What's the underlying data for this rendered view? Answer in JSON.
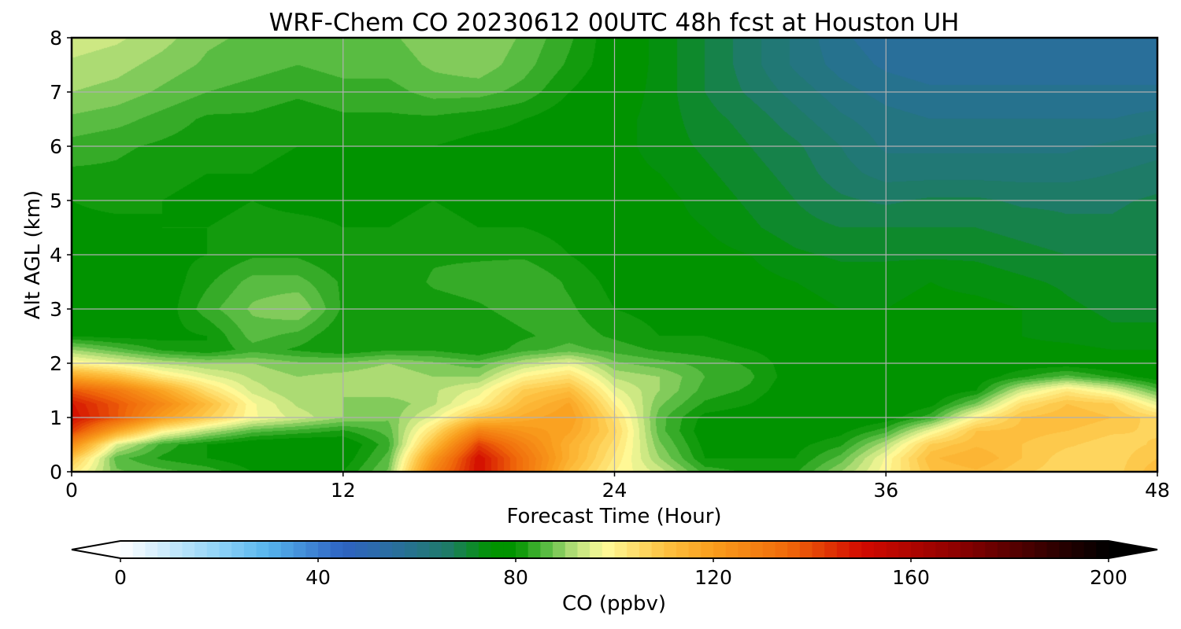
{
  "chart_data": {
    "type": "heatmap",
    "title": "WRF-Chem CO  20230612 00UTC 48h fcst at Houston UH",
    "xlabel": "Forecast Time (Hour)",
    "ylabel": "Alt AGL (km)",
    "xlim": [
      0,
      48
    ],
    "ylim": [
      0,
      8
    ],
    "xticks": [
      "0",
      "12",
      "24",
      "36",
      "48"
    ],
    "yticks": [
      "0",
      "1",
      "2",
      "3",
      "4",
      "5",
      "6",
      "7",
      "8"
    ],
    "grid": true,
    "colorbar": {
      "label": "CO  (ppbv)",
      "range": [
        0,
        200
      ],
      "ticks": [
        "0",
        "40",
        "80",
        "120",
        "160",
        "200"
      ],
      "extend": "both",
      "orientation": "horizontal",
      "placement": "bottom",
      "stops": [
        {
          "v": 0,
          "c": "#ffffff"
        },
        {
          "v": 20,
          "c": "#8fd3f8"
        },
        {
          "v": 30,
          "c": "#56b4ec"
        },
        {
          "v": 45,
          "c": "#2e63c2"
        },
        {
          "v": 55,
          "c": "#2a6ea0"
        },
        {
          "v": 66,
          "c": "#1f7a6a"
        },
        {
          "v": 75,
          "c": "#019300"
        },
        {
          "v": 80,
          "c": "#019300"
        },
        {
          "v": 86,
          "c": "#55ba40"
        },
        {
          "v": 92,
          "c": "#b8e07a"
        },
        {
          "v": 98,
          "c": "#fffb9a"
        },
        {
          "v": 110,
          "c": "#fdc343"
        },
        {
          "v": 120,
          "c": "#f99d1c"
        },
        {
          "v": 135,
          "c": "#f06a0a"
        },
        {
          "v": 150,
          "c": "#d20a00"
        },
        {
          "v": 170,
          "c": "#8a0000"
        },
        {
          "v": 190,
          "c": "#2a0000"
        },
        {
          "v": 200,
          "c": "#000000"
        }
      ]
    },
    "field": {
      "x_hours": [
        0,
        2,
        4,
        6,
        8,
        10,
        12,
        14,
        16,
        18,
        20,
        22,
        24,
        26,
        28,
        30,
        32,
        34,
        36,
        38,
        40,
        42,
        44,
        46,
        48
      ],
      "z_km": [
        0,
        0.25,
        0.5,
        0.75,
        1,
        1.25,
        1.5,
        1.75,
        2,
        2.25,
        2.5,
        3,
        3.5,
        4,
        4.5,
        5,
        5.5,
        6,
        6.5,
        7,
        7.5,
        8
      ],
      "values_ppbv": [
        [
          102,
          88,
          86,
          84,
          80,
          79,
          80,
          88,
          128,
          150,
          132,
          112,
          100,
          94,
          84,
          82,
          82,
          90,
          99,
          110,
          112,
          108,
          106,
          106,
          112
        ],
        [
          110,
          86,
          82,
          80,
          78,
          77,
          78,
          86,
          122,
          150,
          132,
          115,
          102,
          90,
          80,
          80,
          80,
          86,
          98,
          112,
          115,
          110,
          106,
          106,
          110
        ],
        [
          125,
          95,
          84,
          80,
          77,
          76,
          77,
          84,
          112,
          142,
          128,
          115,
          104,
          88,
          79,
          79,
          79,
          82,
          92,
          108,
          112,
          110,
          108,
          106,
          108
        ],
        [
          142,
          118,
          100,
          92,
          86,
          84,
          82,
          86,
          104,
          128,
          122,
          118,
          106,
          86,
          78,
          78,
          77,
          79,
          84,
          97,
          110,
          111,
          110,
          108,
          107
        ],
        [
          150,
          138,
          120,
          108,
          98,
          94,
          90,
          88,
          96,
          110,
          116,
          120,
          104,
          86,
          79,
          78,
          76,
          76,
          78,
          84,
          100,
          110,
          112,
          110,
          106
        ],
        [
          148,
          138,
          126,
          112,
          98,
          92,
          90,
          88,
          92,
          100,
          112,
          118,
          100,
          88,
          82,
          80,
          76,
          75,
          76,
          79,
          88,
          104,
          110,
          108,
          96
        ],
        [
          138,
          130,
          118,
          104,
          94,
          90,
          90,
          92,
          92,
          96,
          108,
          112,
          96,
          90,
          84,
          82,
          77,
          75,
          75,
          77,
          80,
          94,
          102,
          96,
          86
        ],
        [
          118,
          112,
          102,
          96,
          92,
          90,
          91,
          92,
          90,
          90,
          100,
          104,
          92,
          90,
          85,
          83,
          78,
          76,
          75,
          76,
          78,
          82,
          86,
          82,
          78
        ],
        [
          100,
          96,
          92,
          90,
          90,
          88,
          88,
          90,
          88,
          86,
          92,
          96,
          88,
          86,
          84,
          82,
          78,
          77,
          76,
          76,
          77,
          78,
          78,
          77,
          76
        ],
        [
          90,
          86,
          82,
          80,
          84,
          82,
          80,
          82,
          82,
          80,
          84,
          86,
          84,
          82,
          81,
          80,
          78,
          77,
          76,
          76,
          76,
          76,
          76,
          75,
          75
        ],
        [
          80,
          79,
          79,
          80,
          86,
          84,
          80,
          80,
          80,
          80,
          82,
          84,
          82,
          80,
          80,
          79,
          77,
          76,
          76,
          76,
          76,
          75,
          74,
          73,
          73
        ],
        [
          78,
          78,
          78,
          84,
          88,
          90,
          82,
          80,
          81,
          82,
          84,
          83,
          80,
          79,
          78,
          77,
          76,
          75,
          75,
          76,
          76,
          75,
          73,
          72,
          72
        ],
        [
          77,
          77,
          78,
          82,
          86,
          86,
          82,
          80,
          83,
          84,
          85,
          82,
          79,
          78,
          77,
          76,
          75,
          74,
          74,
          75,
          74,
          73,
          72,
          71,
          71
        ],
        [
          78,
          78,
          79,
          80,
          82,
          82,
          80,
          80,
          82,
          82,
          82,
          80,
          78,
          77,
          76,
          75,
          73,
          72,
          72,
          72,
          72,
          71,
          70,
          70,
          70
        ],
        [
          79,
          79,
          80,
          80,
          81,
          81,
          80,
          80,
          81,
          80,
          80,
          79,
          77,
          76,
          75,
          73,
          71,
          70,
          70,
          70,
          70,
          69,
          68,
          68,
          69
        ],
        [
          80,
          81,
          80,
          79,
          80,
          79,
          79,
          79,
          80,
          79,
          79,
          78,
          77,
          76,
          74,
          72,
          70,
          68,
          67,
          68,
          68,
          67,
          67,
          67,
          68
        ],
        [
          82,
          82,
          81,
          80,
          80,
          79,
          79,
          79,
          79,
          78,
          78,
          77,
          76,
          75,
          73,
          71,
          69,
          66,
          64,
          64,
          64,
          64,
          64,
          65,
          66
        ],
        [
          84,
          83,
          82,
          81,
          81,
          80,
          80,
          80,
          80,
          79,
          79,
          78,
          76,
          74,
          72,
          70,
          68,
          65,
          62,
          62,
          62,
          62,
          62,
          63,
          64
        ],
        [
          87,
          86,
          84,
          82,
          82,
          81,
          82,
          82,
          82,
          81,
          80,
          78,
          76,
          74,
          71,
          69,
          66,
          63,
          61,
          60,
          60,
          60,
          60,
          60,
          61
        ],
        [
          90,
          89,
          87,
          85,
          84,
          83,
          84,
          84,
          86,
          86,
          84,
          80,
          77,
          74,
          70,
          67,
          64,
          61,
          59,
          58,
          58,
          58,
          58,
          58,
          58
        ],
        [
          92,
          91,
          89,
          87,
          86,
          85,
          86,
          86,
          88,
          89,
          86,
          82,
          78,
          74,
          70,
          66,
          62,
          59,
          57,
          56,
          56,
          56,
          56,
          56,
          56
        ],
        [
          94,
          93,
          91,
          88,
          87,
          86,
          87,
          87,
          89,
          90,
          87,
          83,
          78,
          74,
          70,
          66,
          62,
          58,
          56,
          55,
          55,
          55,
          55,
          55,
          55
        ]
      ]
    }
  }
}
